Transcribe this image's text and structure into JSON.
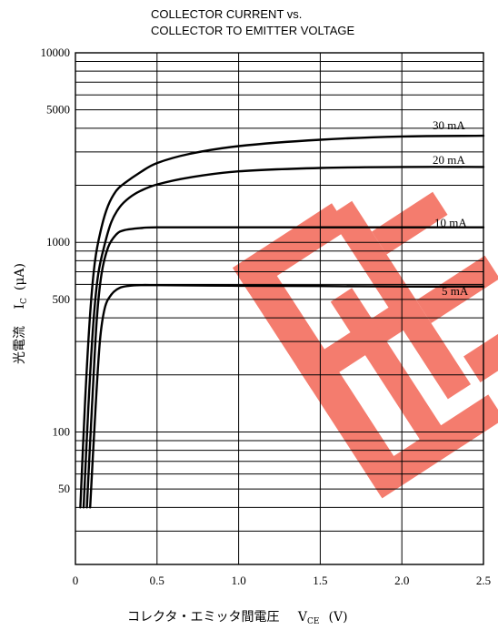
{
  "chart_data": {
    "type": "line",
    "title_line1": "COLLECTOR CURRENT vs.",
    "title_line2": "COLLECTOR TO EMITTER VOLTAGE",
    "xlabel": "コレクタ・エミッタ間電圧",
    "xlabel_symbol": "V",
    "xlabel_sub": "CE",
    "xlabel_unit": "(V)",
    "ylabel": "光電流",
    "ylabel_symbol": "I",
    "ylabel_sub": "C",
    "ylabel_unit": "(μA)",
    "xlim": [
      0,
      2.5
    ],
    "ylim": [
      20,
      10000
    ],
    "yscale": "log",
    "grid": true,
    "x_ticks": [
      {
        "value": 0,
        "label": "0"
      },
      {
        "value": 0.5,
        "label": "0.5"
      },
      {
        "value": 1.0,
        "label": "1.0"
      },
      {
        "value": 1.5,
        "label": "1.5"
      },
      {
        "value": 2.0,
        "label": "2.0"
      },
      {
        "value": 2.5,
        "label": "2.5"
      }
    ],
    "y_ticks": [
      {
        "value": 10000,
        "label": "10000"
      },
      {
        "value": 5000,
        "label": "5000"
      },
      {
        "value": 1000,
        "label": "1000"
      },
      {
        "value": 500,
        "label": "500"
      },
      {
        "value": 100,
        "label": "100"
      },
      {
        "value": 50,
        "label": "50"
      }
    ],
    "watermark_color": "#f47c6e",
    "series": [
      {
        "name": "30 mA",
        "x": [
          0.03,
          0.06,
          0.09,
          0.12,
          0.16,
          0.2,
          0.25,
          0.3,
          0.4,
          0.5,
          0.7,
          1.0,
          1.5,
          2.0,
          2.5
        ],
        "y": [
          40,
          150,
          420,
          800,
          1200,
          1560,
          1870,
          2050,
          2350,
          2620,
          2930,
          3220,
          3480,
          3620,
          3650
        ]
      },
      {
        "name": "20 mA",
        "x": [
          0.05,
          0.08,
          0.11,
          0.14,
          0.18,
          0.22,
          0.27,
          0.33,
          0.4,
          0.5,
          0.7,
          1.0,
          1.5,
          2.0,
          2.5
        ],
        "y": [
          40,
          140,
          380,
          680,
          980,
          1280,
          1530,
          1720,
          1870,
          2020,
          2200,
          2370,
          2470,
          2500,
          2500
        ]
      },
      {
        "name": "10 mA",
        "x": [
          0.07,
          0.1,
          0.13,
          0.16,
          0.2,
          0.25,
          0.3,
          0.4,
          0.5,
          1.0,
          1.5,
          2.0,
          2.5
        ],
        "y": [
          40,
          130,
          380,
          680,
          940,
          1100,
          1160,
          1190,
          1200,
          1200,
          1200,
          1200,
          1200
        ]
      },
      {
        "name": "5 mA",
        "x": [
          0.09,
          0.12,
          0.15,
          0.18,
          0.22,
          0.27,
          0.33,
          0.4,
          0.5,
          1.0,
          1.5,
          2.0,
          2.5
        ],
        "y": [
          40,
          120,
          300,
          450,
          530,
          575,
          590,
          595,
          595,
          590,
          588,
          585,
          585
        ]
      }
    ]
  }
}
